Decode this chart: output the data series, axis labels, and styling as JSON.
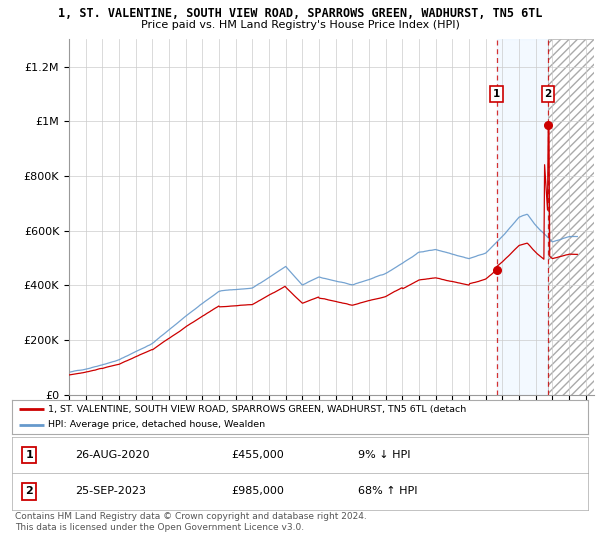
{
  "title": "1, ST. VALENTINE, SOUTH VIEW ROAD, SPARROWS GREEN, WADHURST, TN5 6TL",
  "subtitle": "Price paid vs. HM Land Registry's House Price Index (HPI)",
  "ylabel_ticks": [
    "£0",
    "£200K",
    "£400K",
    "£600K",
    "£800K",
    "£1M",
    "£1.2M"
  ],
  "ytick_values": [
    0,
    200000,
    400000,
    600000,
    800000,
    1000000,
    1200000
  ],
  "ylim": [
    0,
    1300000
  ],
  "xlim_start": 1995.0,
  "xlim_end": 2026.5,
  "hpi_color": "#6699cc",
  "price_color": "#cc0000",
  "shaded_color": "#ddeeff",
  "point1_x": 2020.65,
  "point1_y": 455000,
  "point2_x": 2023.73,
  "point2_y": 985000,
  "legend_label1": "1, ST. VALENTINE, SOUTH VIEW ROAD, SPARROWS GREEN, WADHURST, TN5 6TL (detach",
  "legend_label2": "HPI: Average price, detached house, Wealden",
  "table_row1": [
    "1",
    "26-AUG-2020",
    "£455,000",
    "9% ↓ HPI"
  ],
  "table_row2": [
    "2",
    "25-SEP-2023",
    "£985,000",
    "68% ↑ HPI"
  ],
  "footer": "Contains HM Land Registry data © Crown copyright and database right 2024.\nThis data is licensed under the Open Government Licence v3.0.",
  "background_color": "#ffffff",
  "grid_color": "#cccccc"
}
